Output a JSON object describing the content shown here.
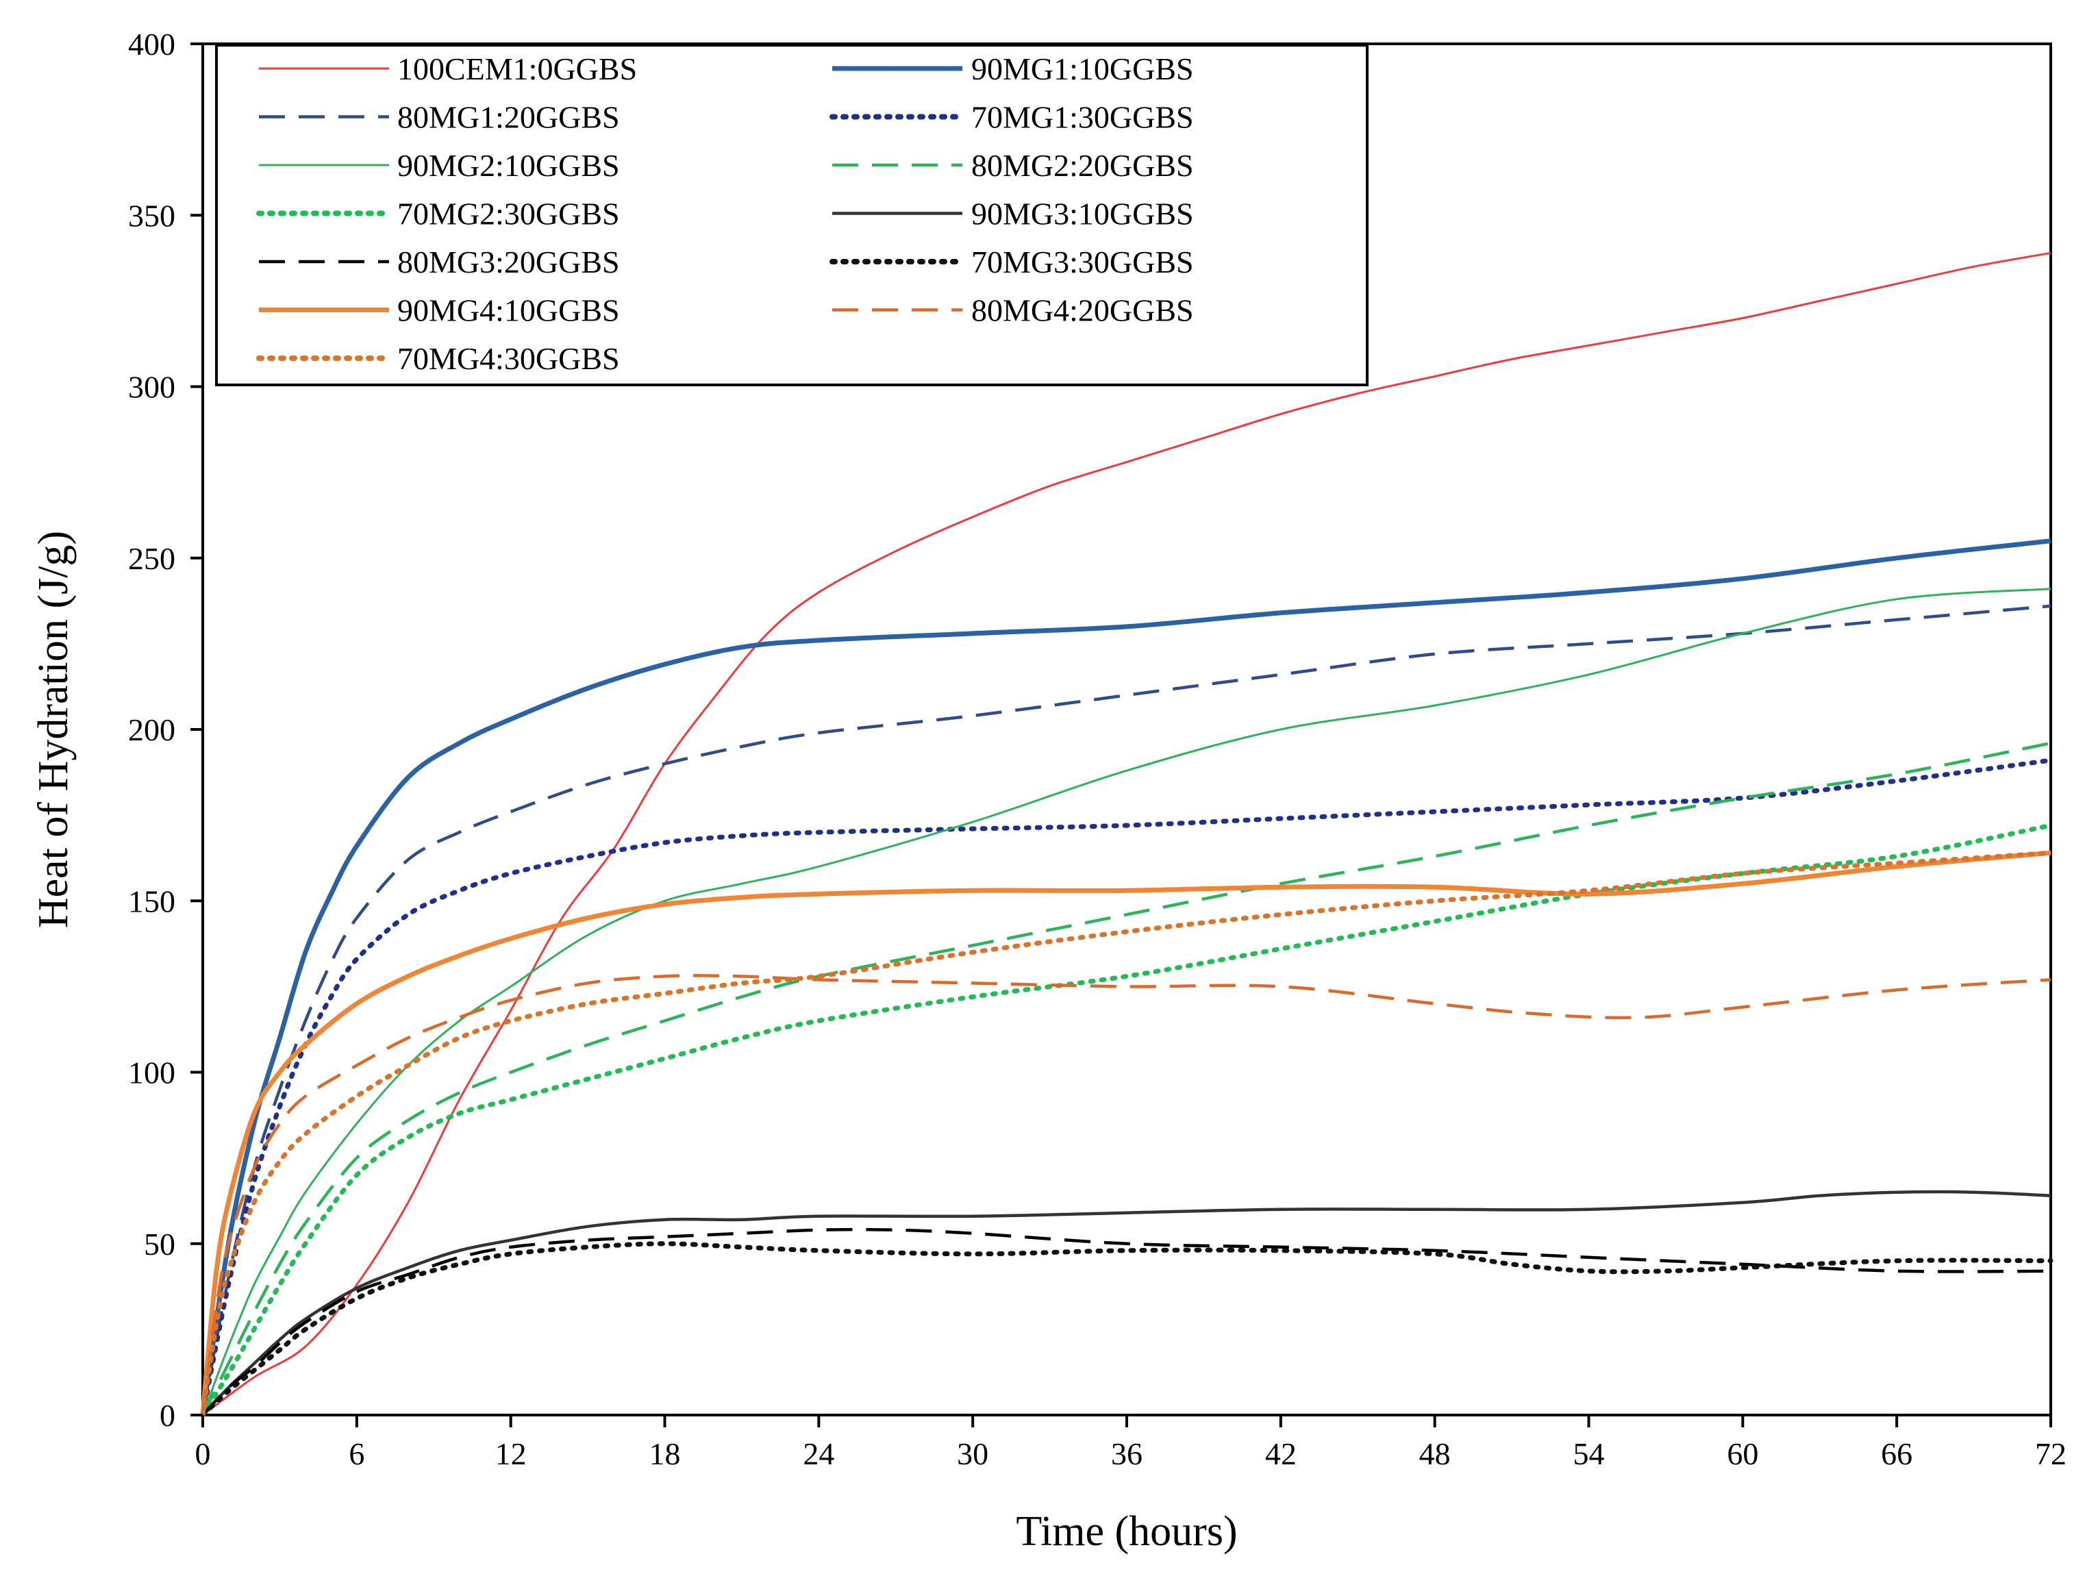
{
  "chart_data": {
    "type": "line",
    "title": "",
    "xlabel": "Time (hours)",
    "ylabel": "Heat of Hydration (J/g)",
    "xlim": [
      0,
      72
    ],
    "ylim": [
      0,
      400
    ],
    "xticks": [
      0,
      6,
      12,
      18,
      24,
      30,
      36,
      42,
      48,
      54,
      60,
      66,
      72
    ],
    "yticks": [
      0,
      50,
      100,
      150,
      200,
      250,
      300,
      350,
      400
    ],
    "grid": false,
    "legend_position": "top-left",
    "series": [
      {
        "name": "100CEM1:0GGBS",
        "color": "#ee3b3b",
        "dash": "solid",
        "weight": "thin",
        "x": [
          0,
          2,
          4,
          6,
          8,
          10,
          12,
          14,
          16,
          18,
          20,
          22,
          24,
          27,
          30,
          33,
          36,
          39,
          42,
          45,
          48,
          51,
          54,
          57,
          60,
          63,
          66,
          69,
          72
        ],
        "y": [
          0,
          11,
          20,
          38,
          62,
          92,
          118,
          145,
          165,
          190,
          210,
          228,
          240,
          252,
          262,
          271,
          278,
          285,
          292,
          298,
          303,
          308,
          312,
          316,
          320,
          325,
          330,
          335,
          339
        ]
      },
      {
        "name": "90MG1:10GGBS",
        "color": "#2a62a4",
        "dash": "solid",
        "weight": "thick",
        "x": [
          0,
          1,
          2,
          3,
          4,
          5,
          6,
          8,
          10,
          12,
          15,
          18,
          21,
          24,
          30,
          36,
          42,
          48,
          54,
          60,
          66,
          72
        ],
        "y": [
          0,
          50,
          85,
          110,
          135,
          152,
          166,
          186,
          196,
          203,
          212,
          219,
          224,
          226,
          228,
          230,
          234,
          237,
          240,
          244,
          250,
          255
        ]
      },
      {
        "name": "80MG1:20GGBS",
        "color": "#2f4b8c",
        "dash": "dash",
        "weight": "normal",
        "x": [
          0,
          1,
          2,
          3,
          4,
          5,
          6,
          8,
          10,
          12,
          15,
          18,
          21,
          24,
          30,
          36,
          42,
          48,
          54,
          60,
          66,
          72
        ],
        "y": [
          0,
          40,
          72,
          95,
          115,
          132,
          145,
          162,
          170,
          176,
          184,
          190,
          195,
          199,
          204,
          210,
          216,
          222,
          225,
          228,
          232,
          236
        ]
      },
      {
        "name": "70MG1:30GGBS",
        "color": "#1f2f8a",
        "dash": "dot",
        "weight": "thick",
        "x": [
          0,
          1,
          2,
          3,
          4,
          5,
          6,
          8,
          10,
          12,
          15,
          18,
          21,
          24,
          30,
          36,
          42,
          48,
          54,
          60,
          66,
          72
        ],
        "y": [
          0,
          38,
          68,
          90,
          108,
          122,
          133,
          146,
          153,
          158,
          163,
          167,
          169,
          170,
          171,
          172,
          174,
          176,
          178,
          180,
          185,
          191
        ]
      },
      {
        "name": "90MG2:10GGBS",
        "color": "#2db35a",
        "dash": "solid",
        "weight": "thin",
        "x": [
          0,
          1,
          2,
          3,
          4,
          6,
          8,
          10,
          12,
          15,
          18,
          21,
          24,
          30,
          36,
          42,
          48,
          54,
          60,
          66,
          72
        ],
        "y": [
          0,
          20,
          38,
          52,
          65,
          85,
          102,
          115,
          125,
          140,
          150,
          155,
          160,
          173,
          188,
          200,
          207,
          216,
          228,
          238,
          241
        ]
      },
      {
        "name": "80MG2:20GGBS",
        "color": "#2db35a",
        "dash": "dash",
        "weight": "normal",
        "x": [
          0,
          1,
          2,
          3,
          4,
          6,
          8,
          10,
          12,
          15,
          18,
          21,
          24,
          30,
          36,
          42,
          48,
          54,
          60,
          66,
          72
        ],
        "y": [
          0,
          15,
          30,
          44,
          56,
          75,
          86,
          94,
          100,
          108,
          115,
          122,
          128,
          137,
          146,
          155,
          163,
          172,
          180,
          187,
          196
        ]
      },
      {
        "name": "70MG2:30GGBS",
        "color": "#22bb55",
        "dash": "dot",
        "weight": "thick",
        "x": [
          0,
          1,
          2,
          3,
          4,
          6,
          8,
          10,
          12,
          15,
          18,
          21,
          24,
          30,
          36,
          42,
          48,
          54,
          60,
          66,
          72
        ],
        "y": [
          0,
          12,
          25,
          38,
          50,
          70,
          81,
          88,
          92,
          98,
          104,
          110,
          115,
          122,
          128,
          136,
          144,
          152,
          158,
          163,
          172
        ]
      },
      {
        "name": "90MG3:10GGBS",
        "color": "#333333",
        "dash": "solid",
        "weight": "normal",
        "x": [
          0,
          1,
          2,
          3,
          4,
          6,
          8,
          10,
          12,
          15,
          18,
          21,
          24,
          30,
          36,
          42,
          48,
          54,
          60,
          63,
          66,
          69,
          72
        ],
        "y": [
          0,
          8,
          15,
          22,
          28,
          37,
          43,
          48,
          51,
          55,
          57,
          57,
          58,
          58,
          59,
          60,
          60,
          60,
          62,
          64,
          65,
          65,
          64
        ]
      },
      {
        "name": "80MG3:20GGBS",
        "color": "#000000",
        "dash": "dash",
        "weight": "normal",
        "x": [
          0,
          1,
          2,
          3,
          4,
          6,
          8,
          10,
          12,
          15,
          18,
          21,
          24,
          27,
          30,
          36,
          42,
          48,
          54,
          60,
          66,
          72
        ],
        "y": [
          0,
          8,
          14,
          21,
          27,
          36,
          41,
          46,
          49,
          51,
          52,
          53,
          54,
          54,
          53,
          50,
          49,
          48,
          46,
          44,
          42,
          42
        ]
      },
      {
        "name": "70MG3:30GGBS",
        "color": "#111111",
        "dash": "dot",
        "weight": "thick",
        "x": [
          0,
          1,
          2,
          3,
          4,
          6,
          8,
          10,
          12,
          15,
          18,
          21,
          24,
          30,
          36,
          42,
          48,
          51,
          54,
          57,
          60,
          66,
          72
        ],
        "y": [
          0,
          7,
          13,
          19,
          25,
          34,
          40,
          44,
          47,
          49,
          50,
          49,
          48,
          47,
          48,
          48,
          47,
          44,
          42,
          42,
          43,
          45,
          45
        ]
      },
      {
        "name": "90MG4:10GGBS",
        "color": "#ee8636",
        "dash": "solid",
        "weight": "thick",
        "x": [
          0,
          0.5,
          1,
          2,
          3,
          4,
          6,
          8,
          10,
          12,
          15,
          18,
          21,
          24,
          30,
          36,
          42,
          48,
          54,
          60,
          66,
          72
        ],
        "y": [
          0,
          40,
          62,
          88,
          100,
          108,
          120,
          128,
          134,
          139,
          145,
          149,
          151,
          152,
          153,
          153,
          154,
          154,
          152,
          155,
          160,
          164
        ]
      },
      {
        "name": "80MG4:20GGBS",
        "color": "#d96a2b",
        "dash": "dash",
        "weight": "normal",
        "x": [
          0,
          0.5,
          1,
          2,
          3,
          4,
          6,
          8,
          10,
          12,
          15,
          18,
          21,
          24,
          30,
          36,
          42,
          48,
          52,
          56,
          60,
          66,
          72
        ],
        "y": [
          0,
          30,
          50,
          72,
          85,
          93,
          102,
          110,
          116,
          121,
          126,
          128,
          128,
          127,
          126,
          125,
          125,
          120,
          117,
          116,
          119,
          124,
          127
        ]
      },
      {
        "name": "70MG4:30GGBS",
        "color": "#d9742b",
        "dash": "dot",
        "weight": "thick",
        "x": [
          0,
          0.5,
          1,
          2,
          3,
          4,
          6,
          8,
          10,
          12,
          15,
          18,
          21,
          24,
          30,
          36,
          42,
          48,
          54,
          60,
          66,
          72
        ],
        "y": [
          0,
          25,
          42,
          62,
          74,
          82,
          93,
          102,
          110,
          115,
          120,
          123,
          126,
          128,
          135,
          141,
          146,
          150,
          153,
          158,
          161,
          164
        ]
      }
    ]
  }
}
